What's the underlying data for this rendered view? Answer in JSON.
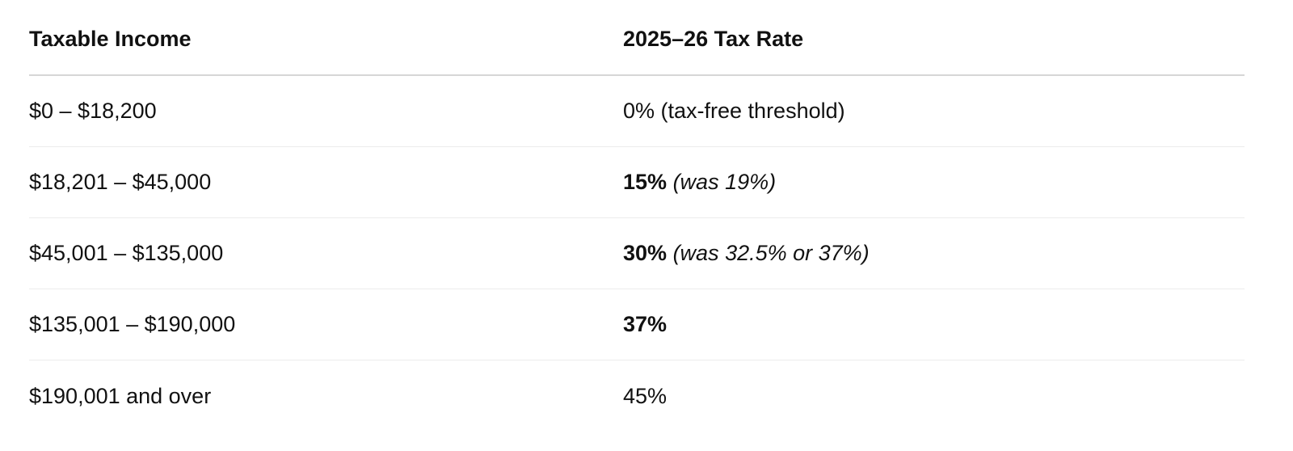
{
  "table": {
    "headers": {
      "income": "Taxable Income",
      "rate": "2025–26 Tax Rate"
    },
    "rows": [
      {
        "income": "$0 – $18,200",
        "rate_bold": "",
        "rate_plain": "0% (tax-free threshold)",
        "rate_note": ""
      },
      {
        "income": "$18,201 – $45,000",
        "rate_bold": "15%",
        "rate_plain": "",
        "rate_note": "(was 19%)"
      },
      {
        "income": "$45,001 – $135,000",
        "rate_bold": "30%",
        "rate_plain": "",
        "rate_note": "(was 32.5% or 37%)"
      },
      {
        "income": "$135,001 – $190,000",
        "rate_bold": "37%",
        "rate_plain": "",
        "rate_note": ""
      },
      {
        "income": "$190,001 and over",
        "rate_bold": "",
        "rate_plain": "45%",
        "rate_note": ""
      }
    ]
  }
}
